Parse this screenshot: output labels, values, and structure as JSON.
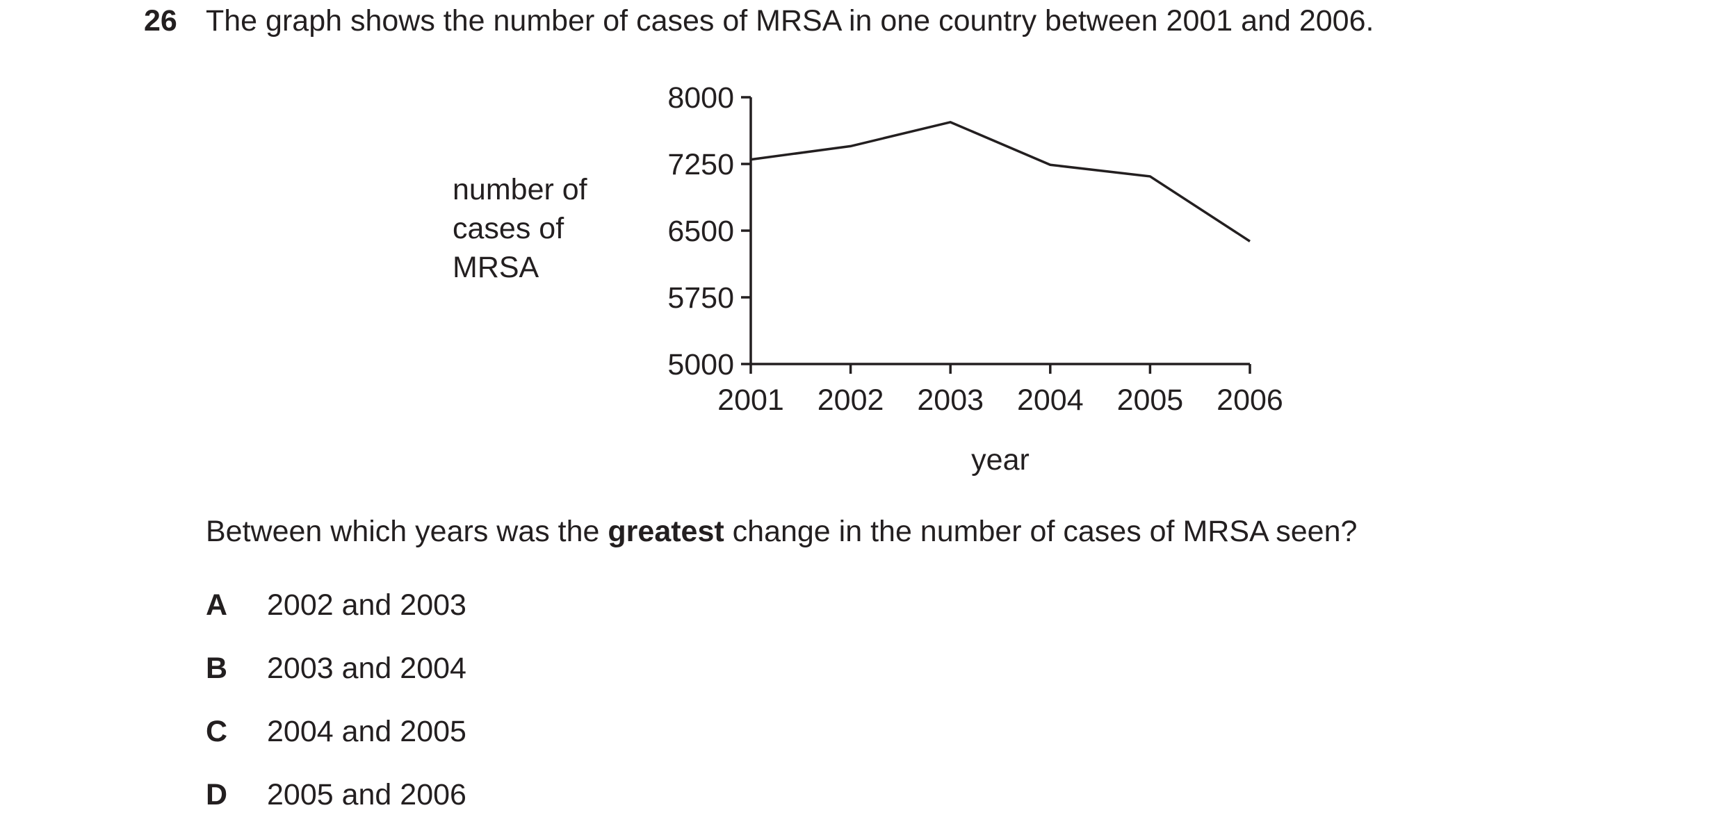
{
  "question": {
    "number": "26",
    "stem": "The graph shows the number of cases of MRSA in one country between 2001 and 2006.",
    "prompt_before": "Between which years was the ",
    "prompt_bold": "greatest",
    "prompt_after": " change in the number of cases of MRSA seen?"
  },
  "options": [
    {
      "letter": "A",
      "text": "2002 and 2003"
    },
    {
      "letter": "B",
      "text": "2003 and 2004"
    },
    {
      "letter": "C",
      "text": "2004 and 2005"
    },
    {
      "letter": "D",
      "text": "2005 and 2006"
    }
  ],
  "chart_data": {
    "type": "line",
    "title": "",
    "xlabel": "year",
    "ylabel_lines": [
      "number of",
      "cases of",
      "MRSA"
    ],
    "x": [
      "2001",
      "2002",
      "2003",
      "2004",
      "2005",
      "2006"
    ],
    "series": [
      {
        "values": [
          7300,
          7450,
          7720,
          7240,
          7110,
          6380
        ]
      }
    ],
    "ylim": [
      5000,
      8000
    ],
    "yticks": [
      "5000",
      "5750",
      "6500",
      "7250",
      "8000"
    ],
    "grid": false,
    "line_color": "#231f20"
  }
}
